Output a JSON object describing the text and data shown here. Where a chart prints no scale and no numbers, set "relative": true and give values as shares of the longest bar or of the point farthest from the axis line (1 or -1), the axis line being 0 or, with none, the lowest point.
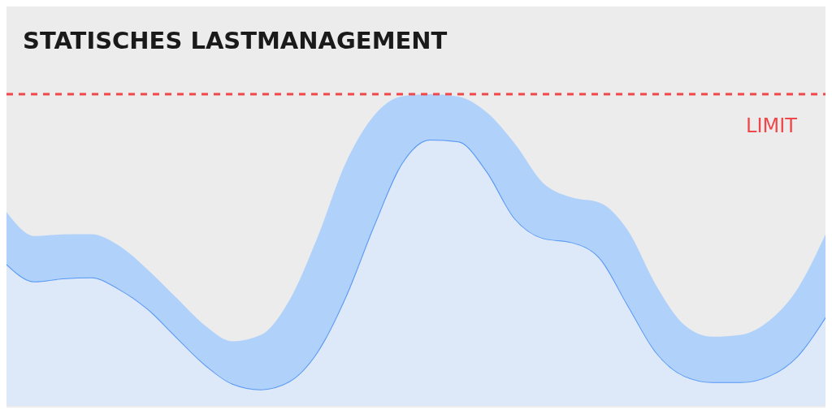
{
  "chart_data": {
    "type": "area",
    "title": "STATISCHES LASTMANAGEMENT",
    "relative": true,
    "stacked": true,
    "categories": [
      null,
      null,
      null,
      null,
      null,
      null,
      null,
      null,
      null,
      null,
      null,
      null,
      null,
      null,
      null,
      null,
      null,
      null,
      null,
      null,
      null,
      null,
      null,
      null,
      null,
      null,
      null,
      null,
      null,
      null
    ],
    "series": [
      {
        "color": "#dde8f8",
        "values": [
          0.455,
          0.399,
          0.409,
          0.412,
          0.374,
          0.311,
          0.222,
          0.134,
          0.071,
          0.053,
          0.078,
          0.172,
          0.348,
          0.576,
          0.778,
          0.854,
          0.848,
          0.753,
          0.601,
          0.538,
          0.525,
          0.475,
          0.323,
          0.172,
          0.096,
          0.076,
          0.076,
          0.096,
          0.159,
          0.285
        ]
      },
      {
        "color": "#afd1fa",
        "values": [
          0.167,
          0.146,
          0.141,
          0.139,
          0.139,
          0.126,
          0.126,
          0.126,
          0.136,
          0.174,
          0.258,
          0.366,
          0.429,
          0.354,
          0.215,
          0.146,
          0.144,
          0.189,
          0.24,
          0.177,
          0.144,
          0.177,
          0.24,
          0.215,
          0.164,
          0.146,
          0.152,
          0.177,
          0.215,
          0.265
        ]
      }
    ],
    "ref_lines": [
      {
        "axis": "y",
        "value": 1,
        "label": "LIMIT",
        "color": "#f0484a",
        "line_style": "dashed"
      }
    ]
  }
}
